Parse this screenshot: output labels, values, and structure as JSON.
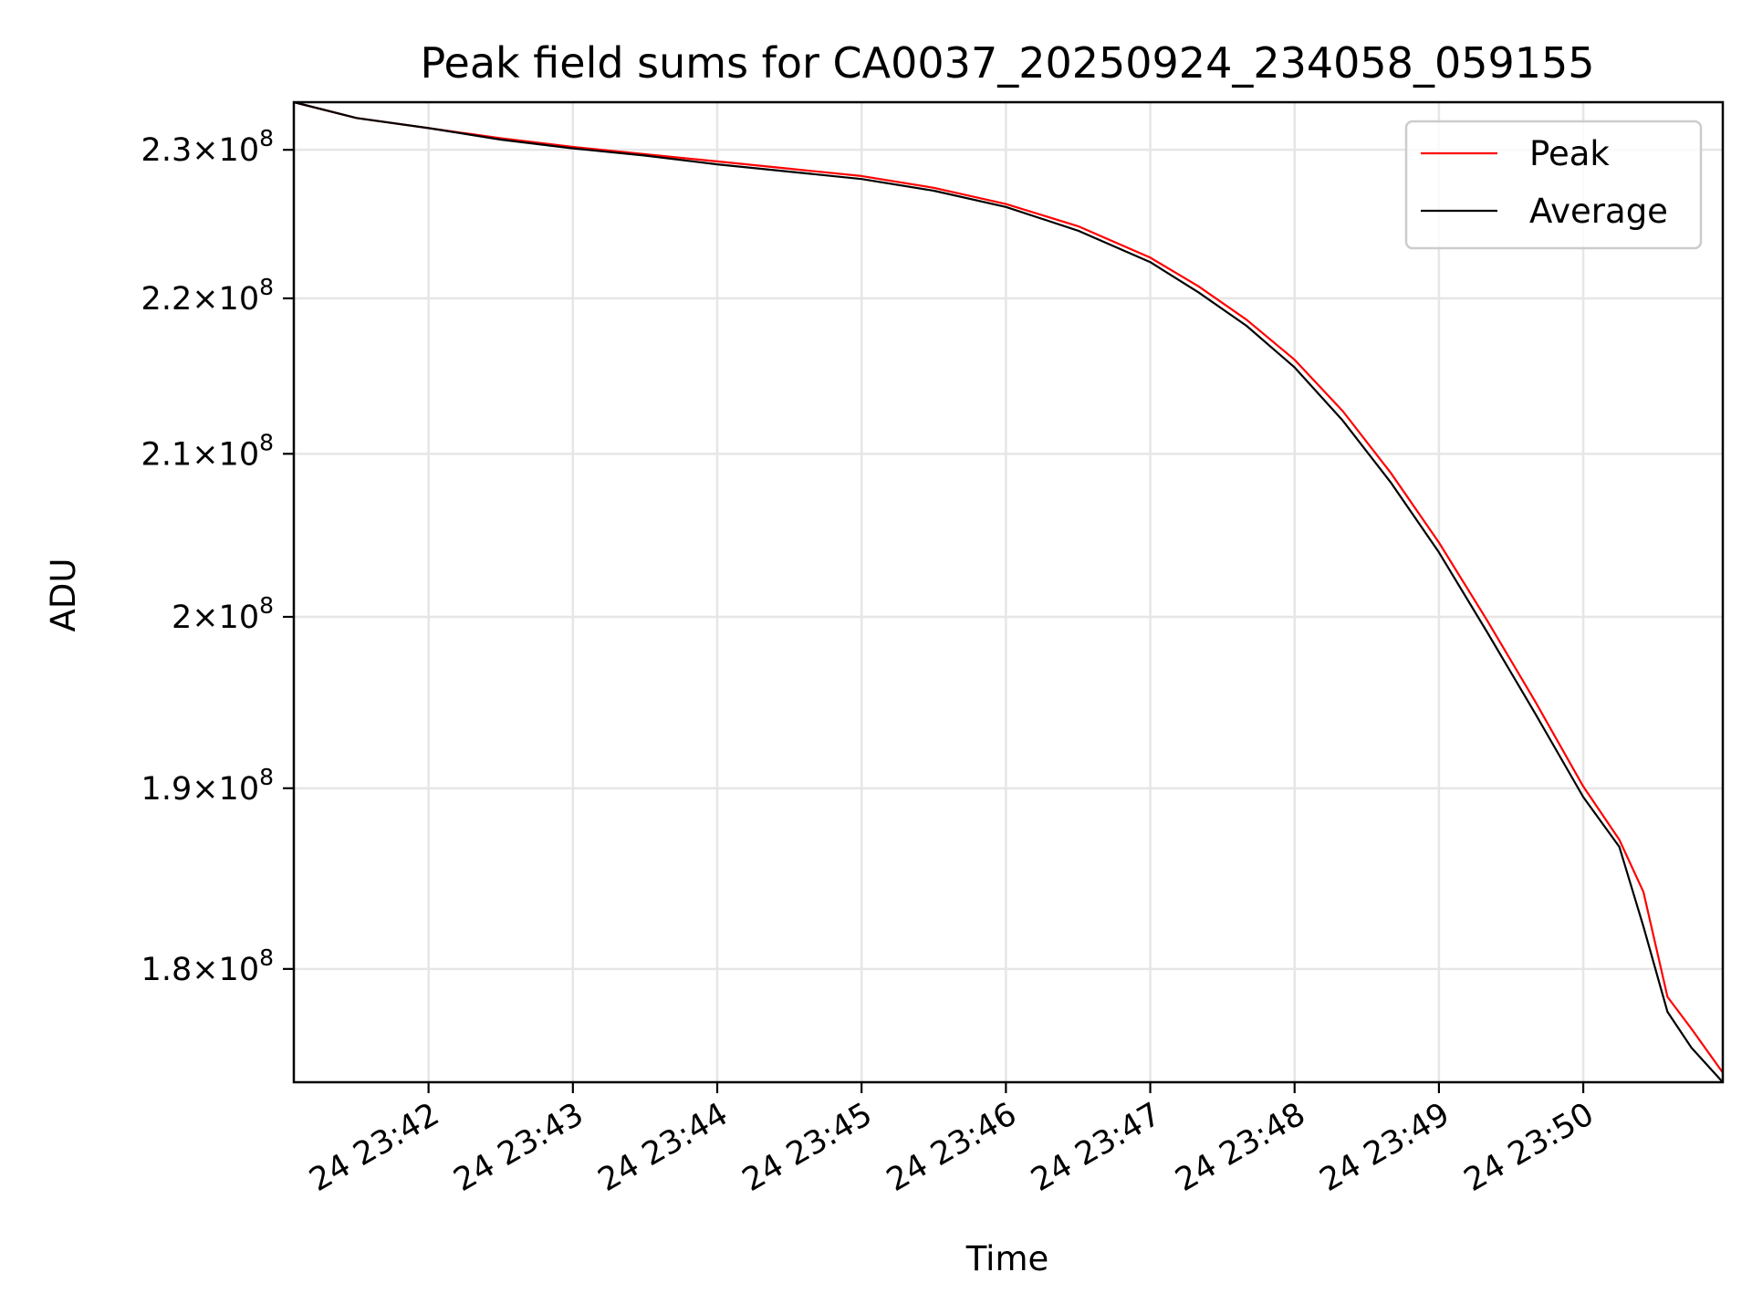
{
  "chart_data": {
    "type": "line",
    "title": "Peak field sums for CA0037_20250924_234058_059155",
    "xlabel": "Time",
    "ylabel": "ADU",
    "yscale": "log",
    "grid": true,
    "legend_position": "top-right",
    "xlim": [
      "2025-09-24 23:41:04",
      "2025-09-24 23:50:58"
    ],
    "ylim": [
      174000000,
      233300000
    ],
    "x_ticks": [
      {
        "value": "2025-09-24 23:42:00",
        "label": "24 23:42"
      },
      {
        "value": "2025-09-24 23:43:00",
        "label": "24 23:43"
      },
      {
        "value": "2025-09-24 23:44:00",
        "label": "24 23:44"
      },
      {
        "value": "2025-09-24 23:45:00",
        "label": "24 23:45"
      },
      {
        "value": "2025-09-24 23:46:00",
        "label": "24 23:46"
      },
      {
        "value": "2025-09-24 23:47:00",
        "label": "24 23:47"
      },
      {
        "value": "2025-09-24 23:48:00",
        "label": "24 23:48"
      },
      {
        "value": "2025-09-24 23:49:00",
        "label": "24 23:49"
      },
      {
        "value": "2025-09-24 23:50:00",
        "label": "24 23:50"
      }
    ],
    "y_ticks": [
      {
        "value": 230000000,
        "mantissa": "2.3",
        "exponent": "8"
      },
      {
        "value": 220000000,
        "mantissa": "2.2",
        "exponent": "8"
      },
      {
        "value": 210000000,
        "mantissa": "2.1",
        "exponent": "8"
      },
      {
        "value": 200000000,
        "mantissa": "2",
        "exponent": "8"
      },
      {
        "value": 190000000,
        "mantissa": "1.9",
        "exponent": "8"
      },
      {
        "value": 180000000,
        "mantissa": "1.8",
        "exponent": "8"
      }
    ],
    "x": [
      "2025-09-24 23:41:04",
      "2025-09-24 23:41:30",
      "2025-09-24 23:42:00",
      "2025-09-24 23:42:30",
      "2025-09-24 23:43:00",
      "2025-09-24 23:43:30",
      "2025-09-24 23:44:00",
      "2025-09-24 23:44:30",
      "2025-09-24 23:45:00",
      "2025-09-24 23:45:30",
      "2025-09-24 23:46:00",
      "2025-09-24 23:46:30",
      "2025-09-24 23:47:00",
      "2025-09-24 23:47:20",
      "2025-09-24 23:47:40",
      "2025-09-24 23:48:00",
      "2025-09-24 23:48:20",
      "2025-09-24 23:48:40",
      "2025-09-24 23:49:00",
      "2025-09-24 23:49:20",
      "2025-09-24 23:49:40",
      "2025-09-24 23:50:00",
      "2025-09-24 23:50:15",
      "2025-09-24 23:50:25",
      "2025-09-24 23:50:35",
      "2025-09-24 23:50:45",
      "2025-09-24 23:50:58"
    ],
    "series": [
      {
        "name": "Peak",
        "color": "#ff0000",
        "values": [
          233300000,
          232200000,
          231500000,
          230800000,
          230200000,
          229700000,
          229200000,
          228700000,
          228200000,
          227400000,
          226300000,
          224800000,
          222700000,
          220800000,
          218600000,
          216000000,
          212700000,
          208800000,
          204500000,
          199800000,
          195000000,
          190100000,
          187100000,
          184200000,
          178500000,
          176800000,
          174500000
        ]
      },
      {
        "name": "Average",
        "color": "#000000",
        "values": [
          233300000,
          232200000,
          231500000,
          230700000,
          230100000,
          229600000,
          229000000,
          228500000,
          228000000,
          227200000,
          226100000,
          224500000,
          222400000,
          220400000,
          218200000,
          215500000,
          212100000,
          208200000,
          203900000,
          199100000,
          194300000,
          189500000,
          186700000,
          182300000,
          177700000,
          175800000,
          174000000
        ]
      }
    ]
  }
}
